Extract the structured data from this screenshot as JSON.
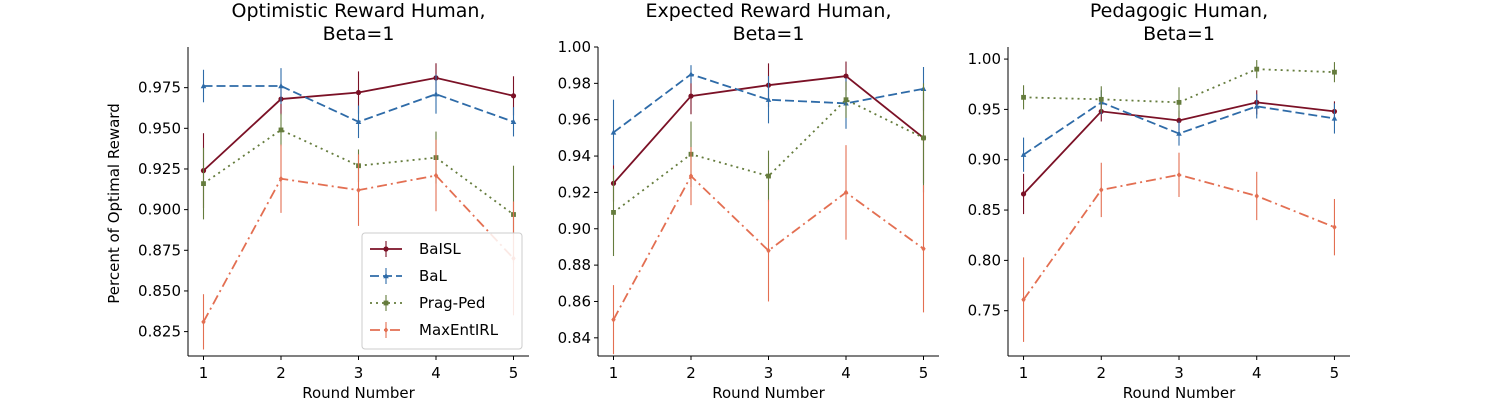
{
  "chart_data": [
    {
      "type": "line",
      "title_lines": [
        "Optimistic Reward Human,",
        "Beta=1"
      ],
      "xlabel": "Round Number",
      "ylabel": "Percent of Optimal Reward",
      "x": [
        1,
        2,
        3,
        4,
        5
      ],
      "xlim": [
        0.8,
        5.2
      ],
      "ylim": [
        0.81,
        1.0
      ],
      "xticks": [
        "1",
        "2",
        "3",
        "4",
        "5"
      ],
      "yticks": [
        0.825,
        0.85,
        0.875,
        0.9,
        0.925,
        0.95,
        0.975
      ],
      "ytick_labels": [
        "0.825",
        "0.850",
        "0.875",
        "0.900",
        "0.925",
        "0.950",
        "0.975"
      ],
      "legend": true,
      "legend_location": "lower-right",
      "series": [
        {
          "name": "BaISL",
          "values": [
            0.924,
            0.968,
            0.972,
            0.981,
            0.97
          ],
          "err": [
            0.023,
            0.01,
            0.013,
            0.009,
            0.012
          ]
        },
        {
          "name": "BaL",
          "values": [
            0.976,
            0.976,
            0.954,
            0.971,
            0.954
          ],
          "err": [
            0.01,
            0.011,
            0.01,
            0.012,
            0.009
          ]
        },
        {
          "name": "Prag-Ped",
          "values": [
            0.916,
            0.949,
            0.927,
            0.932,
            0.897
          ],
          "err": [
            0.022,
            0.01,
            0.01,
            0.016,
            0.03
          ]
        },
        {
          "name": "MaxEntIRL",
          "values": [
            0.831,
            0.919,
            0.912,
            0.921,
            0.87
          ],
          "err": [
            0.017,
            0.021,
            0.022,
            0.022,
            0.035
          ]
        }
      ]
    },
    {
      "type": "line",
      "title_lines": [
        "Expected Reward Human,",
        "Beta=1"
      ],
      "xlabel": "Round Number",
      "ylabel": "",
      "x": [
        1,
        2,
        3,
        4,
        5
      ],
      "xlim": [
        0.8,
        5.2
      ],
      "ylim": [
        0.83,
        1.0
      ],
      "xticks": [
        "1",
        "2",
        "3",
        "4",
        "5"
      ],
      "yticks": [
        0.84,
        0.86,
        0.88,
        0.9,
        0.92,
        0.94,
        0.96,
        0.98,
        1.0
      ],
      "ytick_labels": [
        "0.84",
        "0.86",
        "0.88",
        "0.90",
        "0.92",
        "0.94",
        "0.96",
        "0.98",
        "1.00"
      ],
      "legend": false,
      "series": [
        {
          "name": "BaISL",
          "values": [
            0.925,
            0.973,
            0.979,
            0.984,
            0.95
          ],
          "err": [
            0.01,
            0.01,
            0.012,
            0.008,
            0.025
          ]
        },
        {
          "name": "BaL",
          "values": [
            0.953,
            0.985,
            0.971,
            0.969,
            0.977
          ],
          "err": [
            0.018,
            0.005,
            0.013,
            0.014,
            0.012
          ]
        },
        {
          "name": "Prag-Ped",
          "values": [
            0.909,
            0.941,
            0.929,
            0.971,
            0.95
          ],
          "err": [
            0.024,
            0.018,
            0.014,
            0.01,
            0.03
          ]
        },
        {
          "name": "MaxEntIRL",
          "values": [
            0.85,
            0.929,
            0.888,
            0.92,
            0.889
          ],
          "err": [
            0.019,
            0.016,
            0.028,
            0.026,
            0.035
          ]
        }
      ]
    },
    {
      "type": "line",
      "title_lines": [
        "Pedagogic Human,",
        "Beta=1"
      ],
      "xlabel": "Round Number",
      "ylabel": "",
      "x": [
        1,
        2,
        3,
        4,
        5
      ],
      "xlim": [
        0.8,
        5.2
      ],
      "ylim": [
        0.705,
        1.012
      ],
      "xticks": [
        "1",
        "2",
        "3",
        "4",
        "5"
      ],
      "yticks": [
        0.75,
        0.8,
        0.85,
        0.9,
        0.95,
        1.0
      ],
      "ytick_labels": [
        "0.75",
        "0.80",
        "0.85",
        "0.90",
        "0.95",
        "1.00"
      ],
      "legend": false,
      "series": [
        {
          "name": "BaISL",
          "values": [
            0.866,
            0.948,
            0.939,
            0.957,
            0.948
          ],
          "err": [
            0.02,
            0.01,
            0.01,
            0.012,
            0.01
          ]
        },
        {
          "name": "BaL",
          "values": [
            0.905,
            0.957,
            0.926,
            0.953,
            0.941
          ],
          "err": [
            0.017,
            0.012,
            0.012,
            0.012,
            0.015
          ]
        },
        {
          "name": "Prag-Ped",
          "values": [
            0.962,
            0.96,
            0.957,
            0.99,
            0.987
          ],
          "err": [
            0.012,
            0.013,
            0.015,
            0.009,
            0.01
          ]
        },
        {
          "name": "MaxEntIRL",
          "values": [
            0.761,
            0.87,
            0.885,
            0.864,
            0.833
          ],
          "err": [
            0.042,
            0.027,
            0.022,
            0.024,
            0.028
          ]
        }
      ]
    }
  ],
  "styles": {
    "BaISL": {
      "color": "#7b1126",
      "dash": "",
      "marker": "circle"
    },
    "BaL": {
      "color": "#2e6ba8",
      "dash": "9,4",
      "marker": "triangle"
    },
    "Prag-Ped": {
      "color": "#657c3d",
      "dash": "2,4",
      "marker": "square"
    },
    "MaxEntIRL": {
      "color": "#e36f52",
      "dash": "10,4,2,4",
      "marker": "diamond"
    }
  }
}
